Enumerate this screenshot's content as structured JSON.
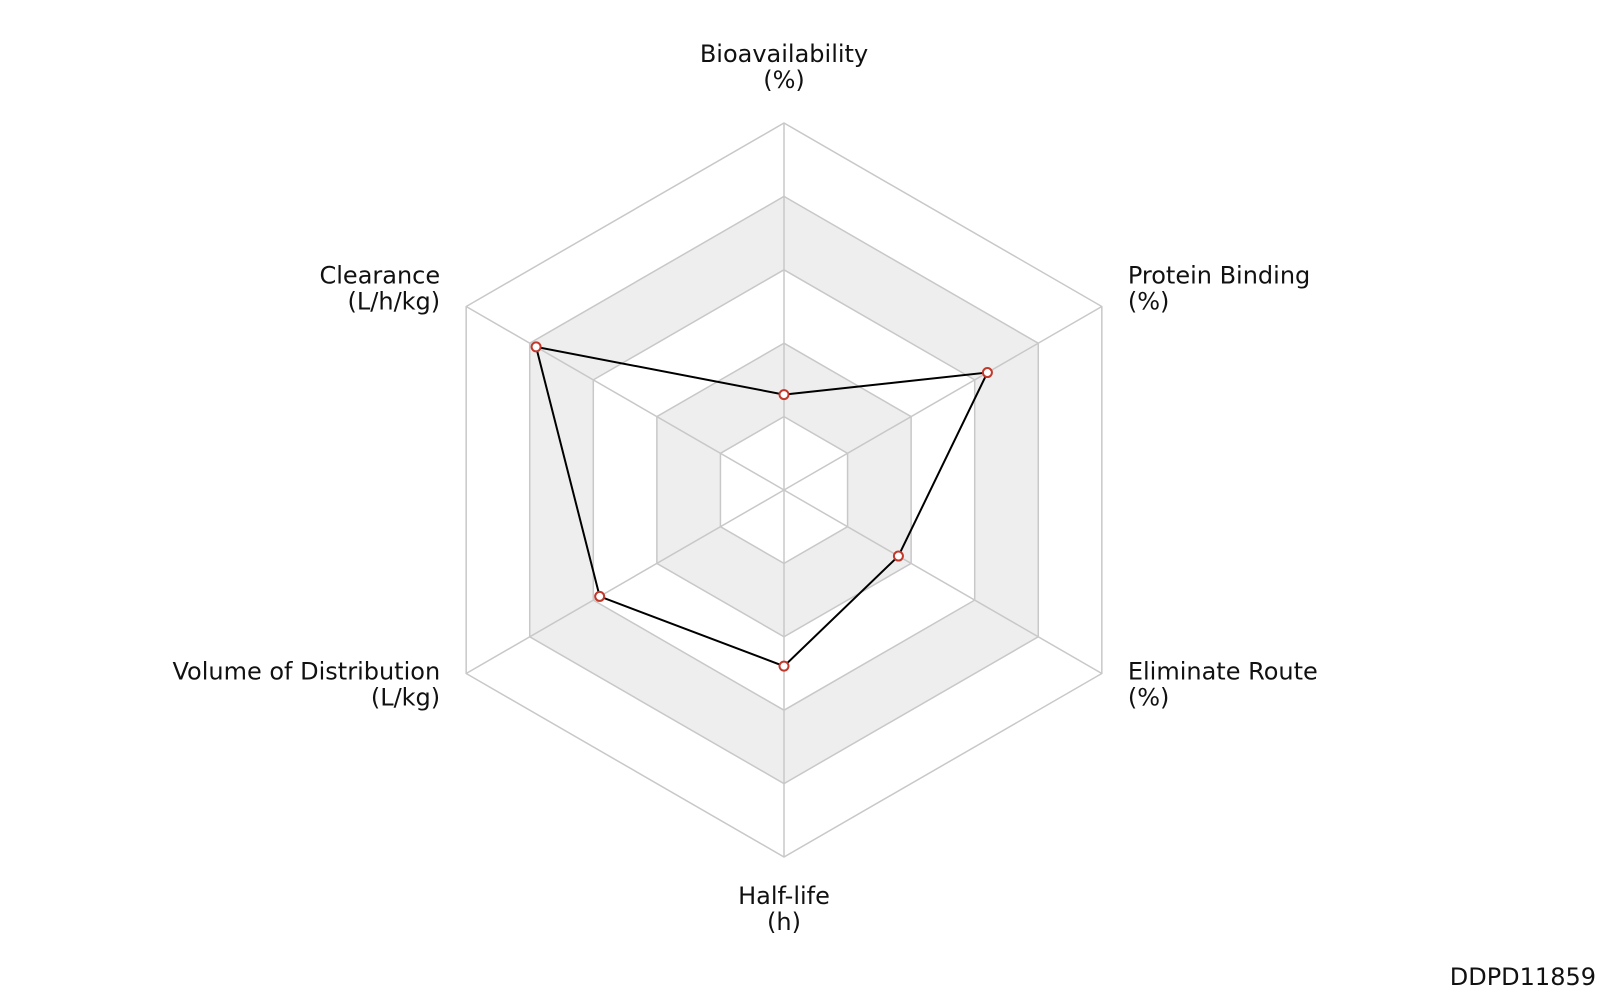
{
  "chart_data": {
    "type": "radar",
    "categories": [
      "Bioavailability",
      "Protein Binding",
      "Eliminate Route",
      "Half-life",
      "Volume of Distribution",
      "Clearance"
    ],
    "units": [
      "(%)",
      "(%)",
      "(%)",
      "(h)",
      "(L/kg)",
      "(L/h/kg)"
    ],
    "values": [
      1.3,
      3.2,
      1.8,
      2.4,
      2.9,
      3.9
    ],
    "ylim": [
      0,
      5
    ],
    "yticks": [
      1,
      2,
      3,
      4,
      5
    ],
    "grid": true,
    "band_color": "#eeeeee",
    "grid_color": "#c8c8c8",
    "line_color": "#000000",
    "marker_color": "#c0392b",
    "annotation": "DDPD11859"
  }
}
